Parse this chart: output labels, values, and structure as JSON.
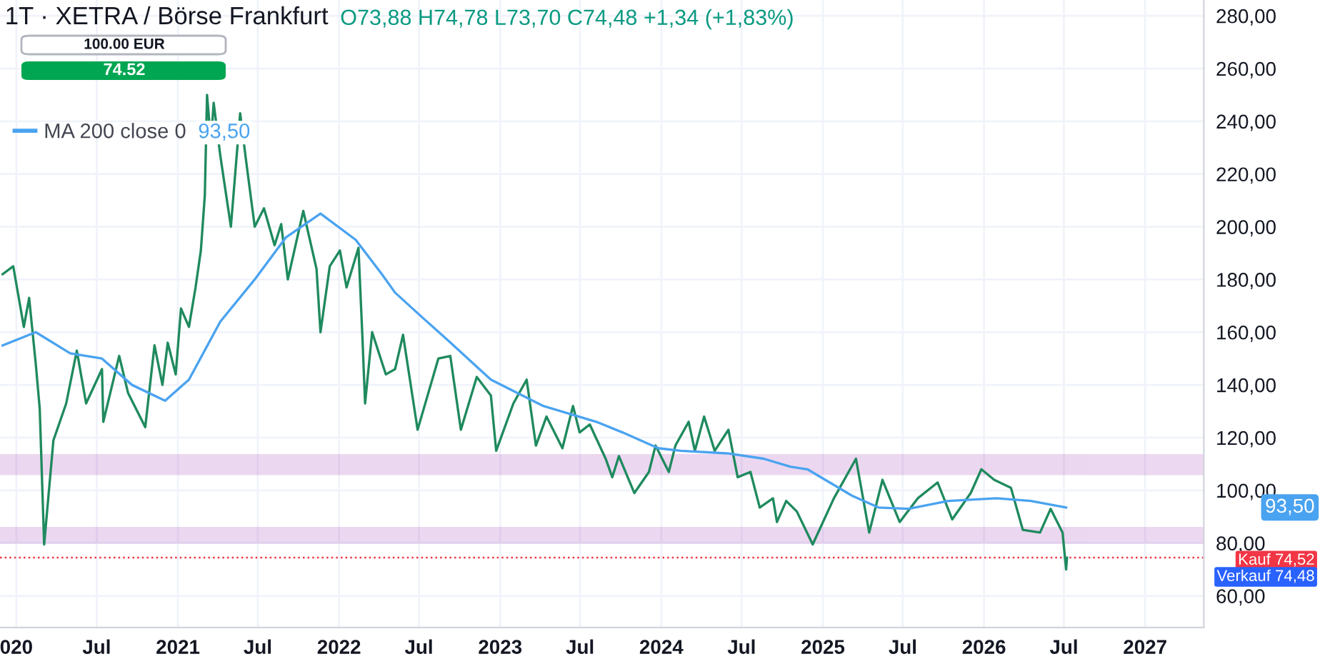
{
  "chart_data": {
    "type": "line",
    "title": "1T · XETRA / Börse Frankfurt",
    "annotations": [
      "O73,88 H74,78 L73,70 C74,48 +1,34 (+1,83%)",
      "100.00 EUR",
      "74.52",
      "93,50",
      "93,50",
      "Verkauf 74,48"
    ],
    "series": [
      {
        "name": null,
        "color": "#1f8a5e",
        "x": [
          "2019-12-01",
          "2019-12-25",
          "2020-01-18",
          "2020-01-30",
          "2020-02-14",
          "2020-02-23",
          "2020-03-04",
          "2020-03-25",
          "2020-04-23",
          "2020-05-17",
          "2020-06-07",
          "2020-07-13",
          "2020-07-16",
          "2020-08-21",
          "2020-09-10",
          "2020-10-19",
          "2020-11-09",
          "2020-11-27",
          "2020-12-09",
          "2020-12-27",
          "2021-01-08",
          "2021-01-26",
          "2021-02-10",
          "2021-02-22",
          "2021-03-03",
          "2021-03-08",
          "2021-03-17",
          "2021-03-23",
          "2021-04-07",
          "2021-05-01",
          "2021-05-22",
          "2021-06-06",
          "2021-06-24",
          "2021-07-15",
          "2021-08-08",
          "2021-08-23",
          "2021-09-07",
          "2021-10-12",
          "2021-11-11",
          "2021-11-20",
          "2021-12-11",
          "2022-01-03",
          "2022-01-18",
          "2022-02-14",
          "2022-02-23",
          "2022-03-01",
          "2022-03-17",
          "2022-04-17",
          "2022-05-08",
          "2022-05-26",
          "2022-06-28",
          "2022-08-14",
          "2022-09-10",
          "2022-10-04",
          "2022-11-09",
          "2022-12-11",
          "2022-12-23",
          "2023-01-31",
          "2023-03-02",
          "2023-03-23",
          "2023-04-16",
          "2023-05-22",
          "2023-06-15",
          "2023-06-30",
          "2023-07-23",
          "2023-08-28",
          "2023-09-12",
          "2023-09-27",
          "2023-11-01",
          "2023-12-04",
          "2023-12-19",
          "2024-01-18",
          "2024-02-02",
          "2024-03-03",
          "2024-03-17",
          "2024-04-07",
          "2024-05-01",
          "2024-06-01",
          "2024-06-22",
          "2024-07-21",
          "2024-08-11",
          "2024-09-10",
          "2024-09-19",
          "2024-10-10",
          "2024-11-03",
          "2024-12-09",
          "2025-01-26",
          "2025-03-17",
          "2025-04-16",
          "2025-05-16",
          "2025-06-24",
          "2025-08-04",
          "2025-09-18",
          "2025-10-21",
          "2025-12-02",
          "2025-12-26",
          "2026-01-24",
          "2026-03-03",
          "2026-03-30",
          "2026-05-08",
          "2026-06-01",
          "2026-06-28",
          "2026-07-06",
          "2026-07-08"
        ],
        "values": [
          182,
          185,
          162,
          173,
          148,
          131,
          79.5,
          119,
          133,
          153,
          133,
          146,
          126,
          151,
          137,
          124,
          155,
          140,
          156,
          144,
          169,
          162,
          177,
          191,
          212,
          250,
          232,
          247,
          227,
          200,
          243,
          223,
          200,
          207,
          193,
          201,
          180,
          206,
          184,
          160,
          185,
          191,
          177,
          192,
          158,
          133,
          160,
          144,
          146,
          159,
          123,
          150,
          151,
          123,
          143,
          136,
          115,
          133,
          142,
          117,
          128,
          116,
          132,
          122,
          125,
          112,
          105,
          113,
          99,
          107,
          117,
          107,
          117,
          126,
          115,
          128,
          115,
          123,
          105,
          107,
          93.5,
          97,
          88,
          96,
          92,
          79.5,
          97,
          112,
          84,
          104,
          88,
          97,
          103,
          89,
          99,
          108,
          104,
          101,
          85,
          84,
          93,
          84,
          70,
          74.5
        ]
      },
      {
        "name": "MA 200 close 0",
        "color": "#4aa3f0",
        "x": [
          "2019-12-01",
          "2020-02-14",
          "2020-05-02",
          "2020-07-13",
          "2020-09-19",
          "2020-12-03",
          "2021-01-26",
          "2021-04-07",
          "2021-06-24",
          "2021-09-03",
          "2021-11-20",
          "2022-02-08",
          "2022-04-08",
          "2022-05-08",
          "2022-07-06",
          "2022-09-04",
          "2022-12-11",
          "2023-04-09",
          "2023-08-07",
          "2023-10-05",
          "2023-12-25",
          "2024-02-14",
          "2024-06-01",
          "2024-08-20",
          "2024-10-19",
          "2024-11-27",
          "2025-03-08",
          "2025-05-07",
          "2025-07-14",
          "2025-10-12",
          "2026-01-30",
          "2026-04-17",
          "2026-07-06"
        ],
        "values": [
          155,
          160,
          152,
          150,
          140,
          134,
          142,
          164,
          180,
          196,
          205,
          195,
          182,
          175,
          166,
          157,
          142,
          132,
          126,
          122,
          116,
          115,
          114,
          112,
          109,
          108,
          98,
          93.5,
          93,
          96,
          97,
          96,
          93.5
        ]
      }
    ],
    "ref_lines": [
      {
        "axis": "y",
        "value": 74.52,
        "label": "Kauf 74,52",
        "color": "#f23645",
        "line_style": "dotted"
      }
    ],
    "bands": [
      {
        "axis": "y",
        "from": 106.5,
        "to": 113,
        "color": "#9c27b0"
      },
      {
        "axis": "y",
        "from": 80.5,
        "to": 85.4,
        "color": "#9c27b0"
      }
    ],
    "xlim": [
      "2019-11-25",
      "2027-05-14"
    ],
    "xticks": [
      {
        "value": "2020-01-01",
        "label": "020"
      },
      {
        "value": "2020-07-01",
        "label": "Jul"
      },
      {
        "value": "2021-01-01",
        "label": "2021"
      },
      {
        "value": "2021-07-01",
        "label": "Jul"
      },
      {
        "value": "2022-01-01",
        "label": "2022"
      },
      {
        "value": "2022-07-01",
        "label": "Jul"
      },
      {
        "value": "2023-01-01",
        "label": "2023"
      },
      {
        "value": "2023-07-01",
        "label": "Jul"
      },
      {
        "value": "2024-01-01",
        "label": "2024"
      },
      {
        "value": "2024-07-01",
        "label": "Jul"
      },
      {
        "value": "2025-01-01",
        "label": "2025"
      },
      {
        "value": "2025-07-01",
        "label": "Jul"
      },
      {
        "value": "2026-01-01",
        "label": "2026"
      },
      {
        "value": "2026-07-01",
        "label": "Jul"
      },
      {
        "value": "2027-01-01",
        "label": "2027"
      }
    ],
    "ylim": [
      48,
      286
    ],
    "yticks": [
      {
        "value": 60,
        "label": "60,00"
      },
      {
        "value": 80,
        "label": "80,00"
      },
      {
        "value": 100,
        "label": "100,00"
      },
      {
        "value": 120,
        "label": "120,00"
      },
      {
        "value": 140,
        "label": "140,00"
      },
      {
        "value": 160,
        "label": "160,00"
      },
      {
        "value": 180,
        "label": "180,00"
      },
      {
        "value": 200,
        "label": "200,00"
      },
      {
        "value": 220,
        "label": "220,00"
      },
      {
        "value": 240,
        "label": "240,00"
      },
      {
        "value": 260,
        "label": "260,00"
      },
      {
        "value": 280,
        "label": "280,00"
      }
    ],
    "grid": true,
    "legend": "top left",
    "marker": "none",
    "line_style": "solid"
  }
}
